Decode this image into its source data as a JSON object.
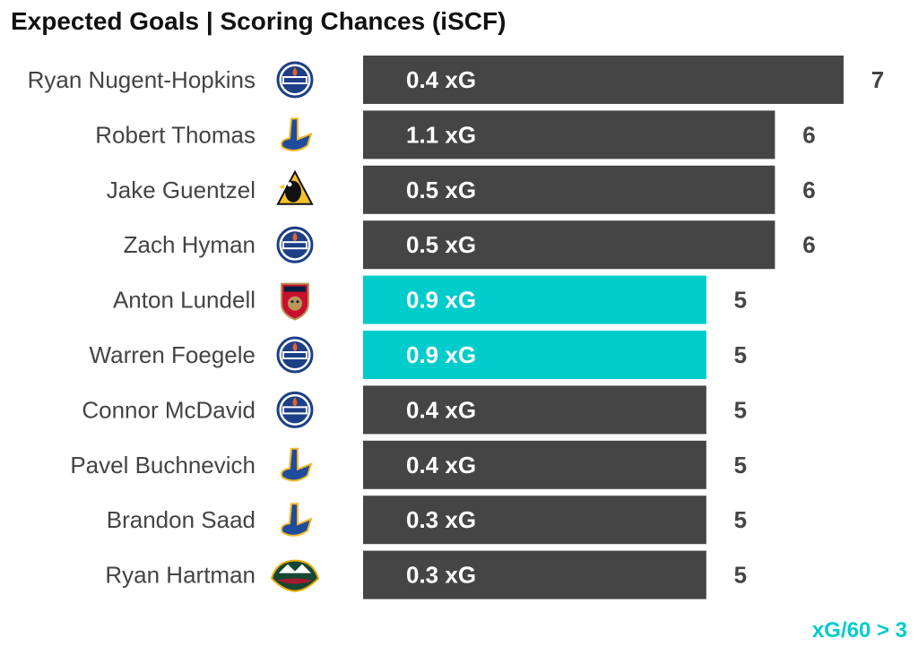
{
  "title": "Expected Goals | Scoring Chances (iSCF)",
  "note": "xG/60 > 3",
  "colors": {
    "bar": "#454545",
    "highlight": "#00cccc",
    "text": "#444444",
    "value": "#444444"
  },
  "chart_data": {
    "type": "bar",
    "orientation": "horizontal",
    "title": "Expected Goals | Scoring Chances (iSCF)",
    "categories": [
      "Ryan Nugent-Hopkins",
      "Robert Thomas",
      "Jake Guentzel",
      "Zach Hyman",
      "Anton Lundell",
      "Warren Foegele",
      "Connor McDavid",
      "Pavel Buchnevich",
      "Brandon Saad",
      "Ryan Hartman"
    ],
    "teams": [
      "oilers-logo-icon",
      "blues-logo-icon",
      "penguins-logo-icon",
      "oilers-logo-icon",
      "panthers-logo-icon",
      "oilers-logo-icon",
      "oilers-logo-icon",
      "blues-logo-icon",
      "blues-logo-icon",
      "wild-logo-icon"
    ],
    "values": [
      7,
      6,
      6,
      6,
      5,
      5,
      5,
      5,
      5,
      5
    ],
    "bar_labels": [
      "0.4 xG",
      "1.1 xG",
      "0.5 xG",
      "0.5 xG",
      "0.9 xG",
      "0.9 xG",
      "0.4 xG",
      "0.4 xG",
      "0.3 xG",
      "0.3 xG"
    ],
    "highlight": [
      false,
      false,
      false,
      false,
      true,
      true,
      false,
      false,
      false,
      false
    ],
    "xlim": [
      0,
      7
    ],
    "grid": false,
    "legend": "bottom-right"
  }
}
